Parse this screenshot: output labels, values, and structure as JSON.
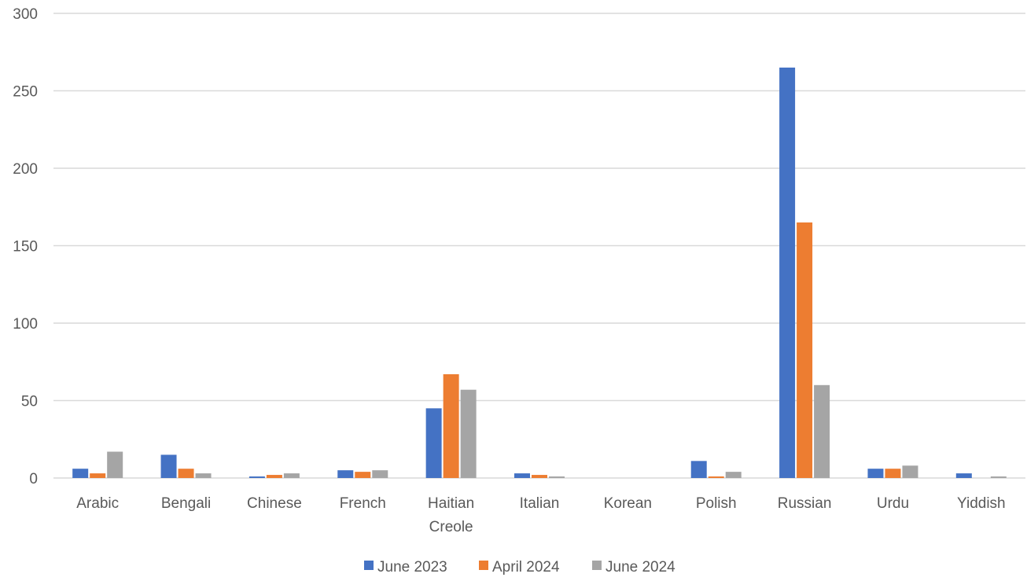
{
  "chart_data": {
    "type": "bar",
    "title": "",
    "xlabel": "",
    "ylabel": "",
    "ylim": [
      0,
      300
    ],
    "y_ticks": [
      0,
      50,
      100,
      150,
      200,
      250,
      300
    ],
    "grid": true,
    "legend_position": "bottom",
    "categories": [
      "Arabic",
      "Bengali",
      "Chinese",
      "French",
      "Haitian Creole",
      "Italian",
      "Korean",
      "Polish",
      "Russian",
      "Urdu",
      "Yiddish"
    ],
    "category_lines": [
      [
        "Arabic"
      ],
      [
        "Bengali"
      ],
      [
        "Chinese"
      ],
      [
        "French"
      ],
      [
        "Haitian",
        "Creole"
      ],
      [
        "Italian"
      ],
      [
        "Korean"
      ],
      [
        "Polish"
      ],
      [
        "Russian"
      ],
      [
        "Urdu"
      ],
      [
        "Yiddish"
      ]
    ],
    "series": [
      {
        "name": "June 2023",
        "color": "#4472c4",
        "values": [
          6,
          15,
          1,
          5,
          45,
          3,
          0,
          11,
          265,
          6,
          3
        ]
      },
      {
        "name": "April 2024",
        "color": "#ed7d31",
        "values": [
          3,
          6,
          2,
          4,
          67,
          2,
          0,
          1,
          165,
          6,
          0
        ]
      },
      {
        "name": "June 2024",
        "color": "#a5a5a5",
        "values": [
          17,
          3,
          3,
          5,
          57,
          1,
          0,
          4,
          60,
          8,
          1
        ]
      }
    ]
  }
}
